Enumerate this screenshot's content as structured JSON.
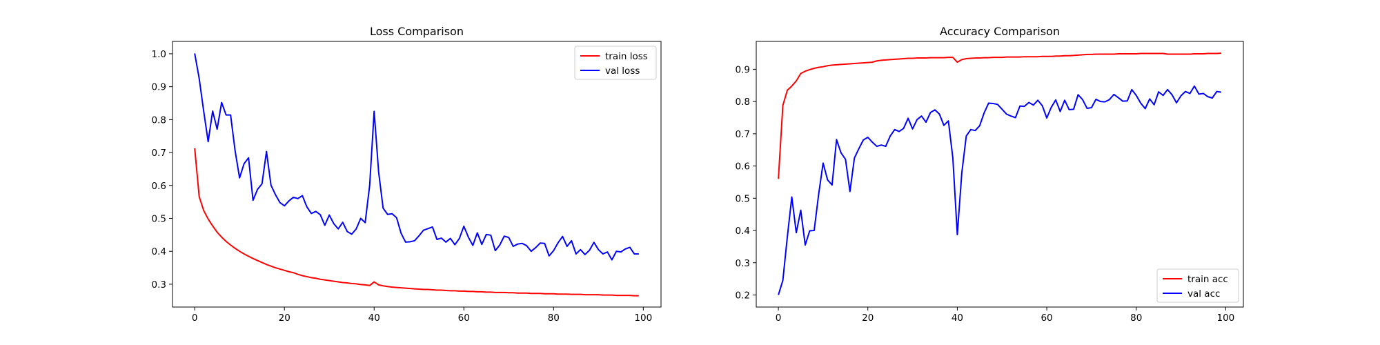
{
  "chart_data": [
    {
      "type": "line",
      "title": "Loss Comparison",
      "xlabel": "",
      "ylabel": "",
      "xlim": [
        -4.95,
        103.95
      ],
      "ylim": [
        0.2306,
        1.0376
      ],
      "xticks": [
        0,
        20,
        40,
        60,
        80,
        100
      ],
      "yticks": [
        0.3,
        0.4,
        0.5,
        0.6,
        0.7,
        0.8,
        0.9,
        1.0
      ],
      "ytick_labels": [
        "0.3",
        "0.4",
        "0.5",
        "0.6",
        "0.7",
        "0.8",
        "0.9",
        "1.0"
      ],
      "grid": false,
      "legend": "top-right",
      "x": [
        0,
        1,
        2,
        3,
        4,
        5,
        6,
        7,
        8,
        9,
        10,
        11,
        12,
        13,
        14,
        15,
        16,
        17,
        18,
        19,
        20,
        21,
        22,
        23,
        24,
        25,
        26,
        27,
        28,
        29,
        30,
        31,
        32,
        33,
        34,
        35,
        36,
        37,
        38,
        39,
        40,
        41,
        42,
        43,
        44,
        45,
        46,
        47,
        48,
        49,
        50,
        51,
        52,
        53,
        54,
        55,
        56,
        57,
        58,
        59,
        60,
        61,
        62,
        63,
        64,
        65,
        66,
        67,
        68,
        69,
        70,
        71,
        72,
        73,
        74,
        75,
        76,
        77,
        78,
        79,
        80,
        81,
        82,
        83,
        84,
        85,
        86,
        87,
        88,
        89,
        90,
        91,
        92,
        93,
        94,
        95,
        96,
        97,
        98,
        99
      ],
      "series": [
        {
          "name": "train loss",
          "color": "#ff0000",
          "values": [
            0.713,
            0.566,
            0.524,
            0.498,
            0.477,
            0.458,
            0.443,
            0.43,
            0.419,
            0.409,
            0.4,
            0.392,
            0.385,
            0.378,
            0.372,
            0.366,
            0.36,
            0.355,
            0.35,
            0.346,
            0.342,
            0.338,
            0.335,
            0.33,
            0.326,
            0.323,
            0.32,
            0.318,
            0.315,
            0.313,
            0.311,
            0.309,
            0.307,
            0.305,
            0.304,
            0.302,
            0.301,
            0.299,
            0.298,
            0.296,
            0.307,
            0.298,
            0.295,
            0.293,
            0.291,
            0.29,
            0.289,
            0.288,
            0.287,
            0.286,
            0.285,
            0.284,
            0.284,
            0.283,
            0.282,
            0.282,
            0.281,
            0.28,
            0.28,
            0.279,
            0.279,
            0.278,
            0.278,
            0.277,
            0.277,
            0.276,
            0.276,
            0.275,
            0.275,
            0.275,
            0.274,
            0.274,
            0.273,
            0.273,
            0.273,
            0.272,
            0.272,
            0.272,
            0.271,
            0.271,
            0.271,
            0.27,
            0.27,
            0.27,
            0.269,
            0.269,
            0.269,
            0.268,
            0.268,
            0.268,
            0.268,
            0.267,
            0.267,
            0.267,
            0.266,
            0.266,
            0.266,
            0.266,
            0.265,
            0.265
          ]
        },
        {
          "name": "val loss",
          "color": "#0000ff",
          "values": [
            1.001,
            0.925,
            0.826,
            0.733,
            0.826,
            0.771,
            0.852,
            0.814,
            0.814,
            0.706,
            0.623,
            0.666,
            0.684,
            0.555,
            0.588,
            0.605,
            0.703,
            0.601,
            0.572,
            0.548,
            0.538,
            0.553,
            0.564,
            0.56,
            0.569,
            0.535,
            0.515,
            0.521,
            0.511,
            0.479,
            0.51,
            0.484,
            0.468,
            0.488,
            0.46,
            0.452,
            0.468,
            0.5,
            0.487,
            0.6,
            0.825,
            0.641,
            0.531,
            0.512,
            0.514,
            0.502,
            0.455,
            0.428,
            0.429,
            0.432,
            0.447,
            0.464,
            0.469,
            0.474,
            0.436,
            0.44,
            0.428,
            0.439,
            0.42,
            0.439,
            0.476,
            0.443,
            0.418,
            0.456,
            0.421,
            0.451,
            0.449,
            0.402,
            0.419,
            0.446,
            0.442,
            0.415,
            0.422,
            0.424,
            0.417,
            0.4,
            0.411,
            0.425,
            0.424,
            0.386,
            0.402,
            0.426,
            0.445,
            0.415,
            0.432,
            0.392,
            0.405,
            0.39,
            0.403,
            0.427,
            0.405,
            0.392,
            0.398,
            0.374,
            0.4,
            0.398,
            0.407,
            0.412,
            0.392,
            0.392
          ]
        }
      ]
    },
    {
      "type": "line",
      "title": "Accuracy Comparison",
      "xlabel": "",
      "ylabel": "",
      "xlim": [
        -4.95,
        103.95
      ],
      "ylim": [
        0.1625,
        0.9865
      ],
      "xticks": [
        0,
        20,
        40,
        60,
        80,
        100
      ],
      "yticks": [
        0.2,
        0.3,
        0.4,
        0.5,
        0.6,
        0.7,
        0.8,
        0.9
      ],
      "ytick_labels": [
        "0.2",
        "0.3",
        "0.4",
        "0.5",
        "0.6",
        "0.7",
        "0.8",
        "0.9"
      ],
      "grid": false,
      "legend": "bottom-right",
      "x": [
        0,
        1,
        2,
        3,
        4,
        5,
        6,
        7,
        8,
        9,
        10,
        11,
        12,
        13,
        14,
        15,
        16,
        17,
        18,
        19,
        20,
        21,
        22,
        23,
        24,
        25,
        26,
        27,
        28,
        29,
        30,
        31,
        32,
        33,
        34,
        35,
        36,
        37,
        38,
        39,
        40,
        41,
        42,
        43,
        44,
        45,
        46,
        47,
        48,
        49,
        50,
        51,
        52,
        53,
        54,
        55,
        56,
        57,
        58,
        59,
        60,
        61,
        62,
        63,
        64,
        65,
        66,
        67,
        68,
        69,
        70,
        71,
        72,
        73,
        74,
        75,
        76,
        77,
        78,
        79,
        80,
        81,
        82,
        83,
        84,
        85,
        86,
        87,
        88,
        89,
        90,
        91,
        92,
        93,
        94,
        95,
        96,
        97,
        98,
        99
      ],
      "series": [
        {
          "name": "train acc",
          "color": "#ff0000",
          "values": [
            0.56,
            0.788,
            0.835,
            0.848,
            0.864,
            0.887,
            0.894,
            0.899,
            0.903,
            0.906,
            0.908,
            0.911,
            0.913,
            0.914,
            0.915,
            0.916,
            0.917,
            0.918,
            0.919,
            0.92,
            0.921,
            0.922,
            0.926,
            0.928,
            0.929,
            0.93,
            0.931,
            0.932,
            0.933,
            0.934,
            0.934,
            0.935,
            0.935,
            0.935,
            0.936,
            0.936,
            0.936,
            0.936,
            0.937,
            0.937,
            0.922,
            0.93,
            0.933,
            0.934,
            0.935,
            0.935,
            0.936,
            0.936,
            0.937,
            0.937,
            0.937,
            0.938,
            0.938,
            0.938,
            0.938,
            0.939,
            0.939,
            0.939,
            0.939,
            0.94,
            0.94,
            0.94,
            0.941,
            0.941,
            0.942,
            0.942,
            0.943,
            0.944,
            0.945,
            0.946,
            0.946,
            0.947,
            0.947,
            0.947,
            0.947,
            0.947,
            0.948,
            0.948,
            0.948,
            0.948,
            0.948,
            0.949,
            0.949,
            0.949,
            0.949,
            0.949,
            0.949,
            0.947,
            0.947,
            0.947,
            0.947,
            0.947,
            0.947,
            0.948,
            0.948,
            0.948,
            0.949,
            0.949,
            0.949,
            0.95
          ]
        },
        {
          "name": "val acc",
          "color": "#0000ff",
          "values": [
            0.2,
            0.245,
            0.38,
            0.504,
            0.393,
            0.463,
            0.355,
            0.399,
            0.4,
            0.512,
            0.609,
            0.557,
            0.541,
            0.682,
            0.641,
            0.621,
            0.521,
            0.625,
            0.654,
            0.681,
            0.689,
            0.674,
            0.661,
            0.665,
            0.661,
            0.693,
            0.713,
            0.707,
            0.717,
            0.748,
            0.715,
            0.744,
            0.755,
            0.736,
            0.766,
            0.774,
            0.761,
            0.726,
            0.74,
            0.625,
            0.387,
            0.578,
            0.693,
            0.713,
            0.71,
            0.725,
            0.765,
            0.795,
            0.794,
            0.791,
            0.776,
            0.761,
            0.755,
            0.75,
            0.786,
            0.785,
            0.797,
            0.789,
            0.804,
            0.787,
            0.749,
            0.782,
            0.805,
            0.769,
            0.804,
            0.775,
            0.776,
            0.821,
            0.806,
            0.779,
            0.781,
            0.807,
            0.8,
            0.799,
            0.806,
            0.822,
            0.812,
            0.801,
            0.802,
            0.837,
            0.819,
            0.795,
            0.778,
            0.808,
            0.79,
            0.83,
            0.819,
            0.837,
            0.821,
            0.796,
            0.818,
            0.831,
            0.825,
            0.848,
            0.823,
            0.825,
            0.815,
            0.811,
            0.831,
            0.829
          ]
        }
      ]
    }
  ]
}
